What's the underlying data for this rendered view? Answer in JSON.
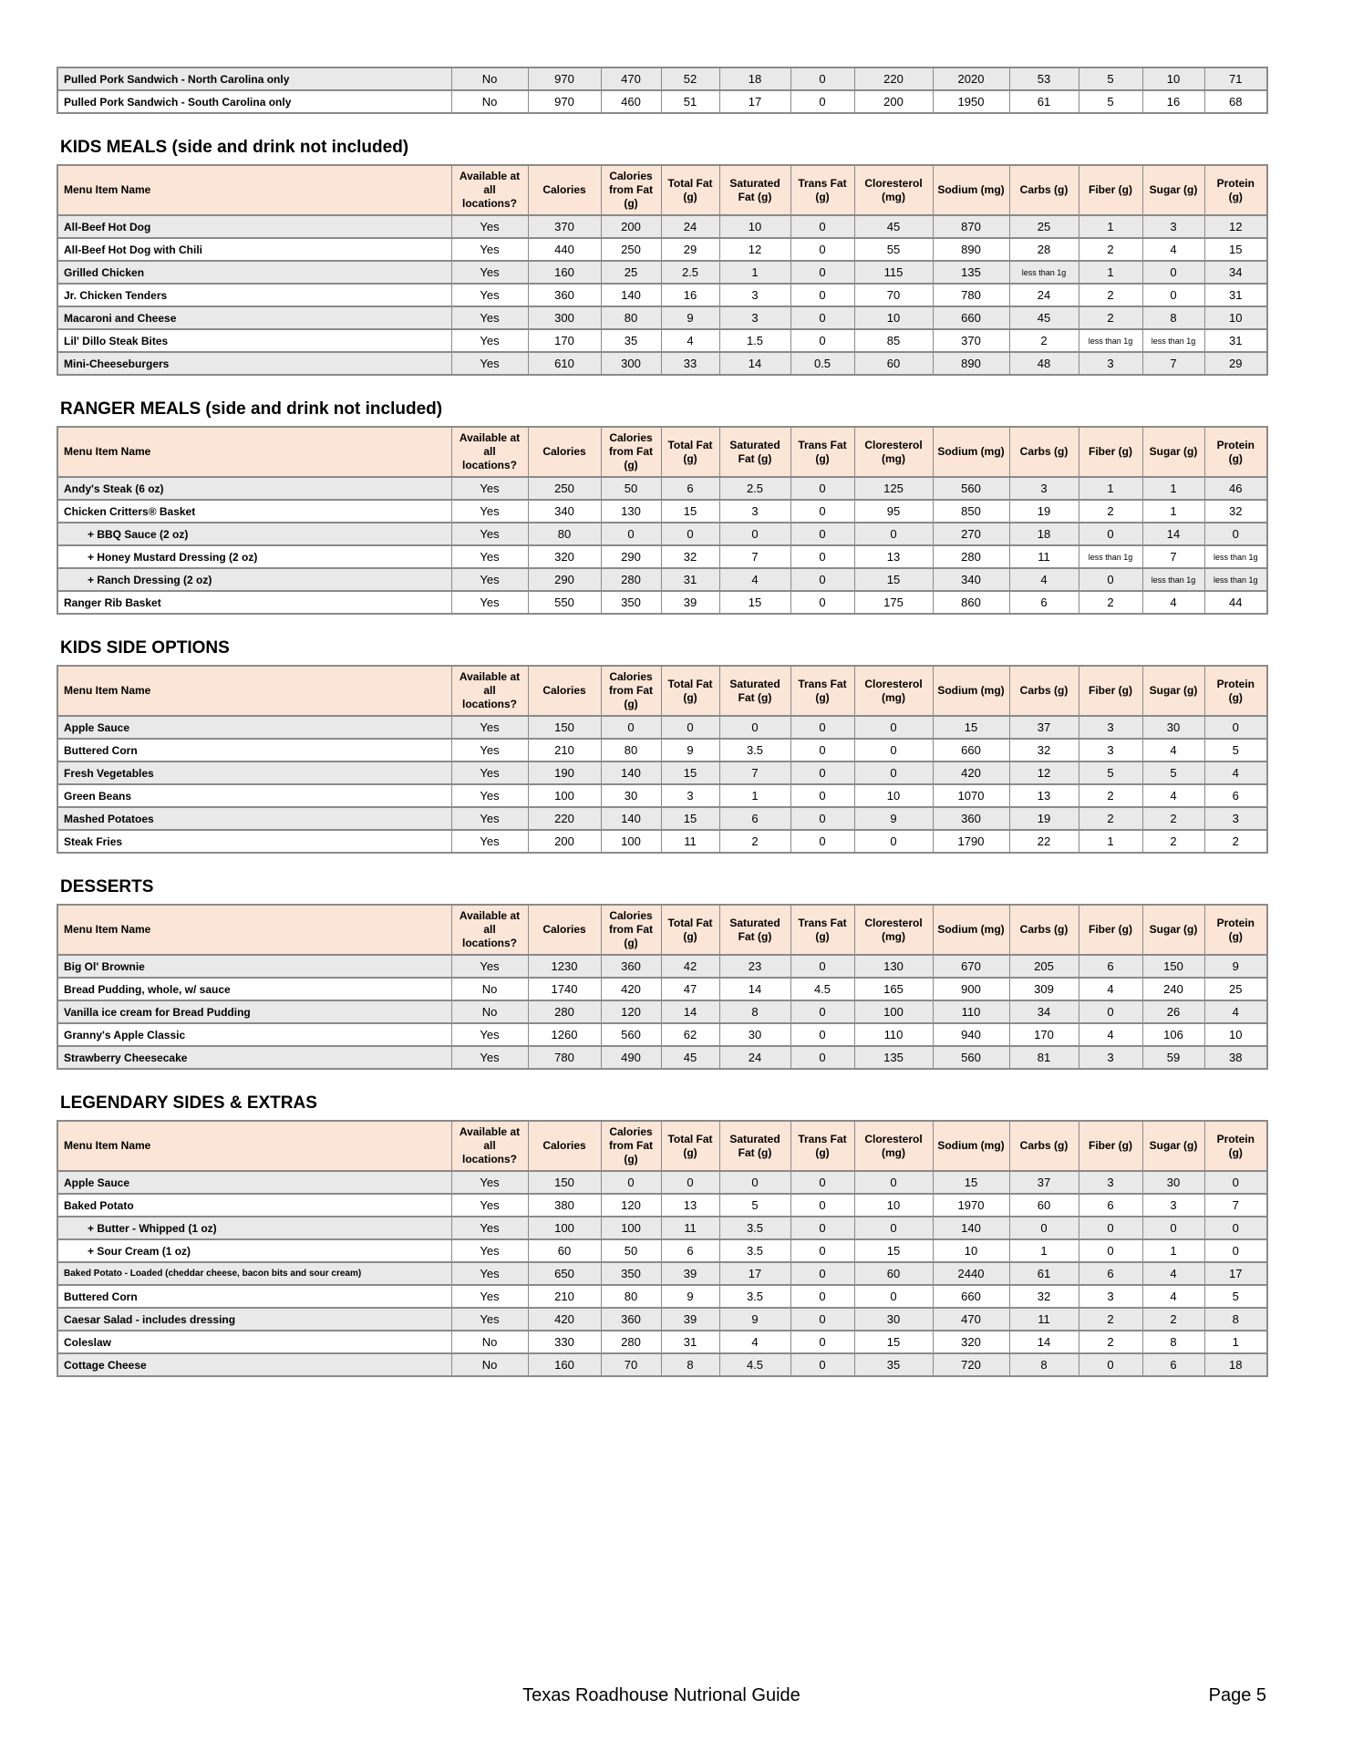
{
  "header_columns": {
    "menu": "Menu Item Name",
    "cols": [
      "Available at all locations?",
      "Calories",
      "Calories from Fat (g)",
      "Total Fat (g)",
      "Saturated Fat (g)",
      "Trans Fat (g)",
      "Cloresterol (mg)",
      "Sodium (mg)",
      "Carbs (g)",
      "Fiber (g)",
      "Sugar (g)",
      "Protein (g)"
    ]
  },
  "colors": {
    "header_bg": "#fbe5d6",
    "stripe_bg": "#e9e9e9",
    "border": "#8a8a8a"
  },
  "tables": [
    {
      "name": "sandwiches-continued",
      "title": "",
      "has_header": false,
      "rows": [
        {
          "item": "Pulled Pork Sandwich - North Carolina only",
          "values": [
            "No",
            "970",
            "470",
            "52",
            "18",
            "0",
            "220",
            "2020",
            "53",
            "5",
            "10",
            "71"
          ]
        },
        {
          "item": "Pulled Pork Sandwich - South Carolina only",
          "values": [
            "No",
            "970",
            "460",
            "51",
            "17",
            "0",
            "200",
            "1950",
            "61",
            "5",
            "16",
            "68"
          ]
        }
      ]
    },
    {
      "name": "kids-meals",
      "title": "KIDS MEALS (side and drink not included)",
      "has_header": true,
      "rows": [
        {
          "item": "All-Beef Hot Dog",
          "values": [
            "Yes",
            "370",
            "200",
            "24",
            "10",
            "0",
            "45",
            "870",
            "25",
            "1",
            "3",
            "12"
          ]
        },
        {
          "item": "All-Beef Hot Dog with Chili",
          "values": [
            "Yes",
            "440",
            "250",
            "29",
            "12",
            "0",
            "55",
            "890",
            "28",
            "2",
            "4",
            "15"
          ]
        },
        {
          "item": "Grilled Chicken",
          "values": [
            "Yes",
            "160",
            "25",
            "2.5",
            "1",
            "0",
            "115",
            "135",
            "less than 1g",
            "1",
            "0",
            "34"
          ]
        },
        {
          "item": "Jr. Chicken Tenders",
          "values": [
            "Yes",
            "360",
            "140",
            "16",
            "3",
            "0",
            "70",
            "780",
            "24",
            "2",
            "0",
            "31"
          ]
        },
        {
          "item": "Macaroni and Cheese",
          "values": [
            "Yes",
            "300",
            "80",
            "9",
            "3",
            "0",
            "10",
            "660",
            "45",
            "2",
            "8",
            "10"
          ]
        },
        {
          "item": "Lil' Dillo Steak Bites",
          "values": [
            "Yes",
            "170",
            "35",
            "4",
            "1.5",
            "0",
            "85",
            "370",
            "2",
            "less than 1g",
            "less than 1g",
            "31"
          ]
        },
        {
          "item": "Mini-Cheeseburgers",
          "values": [
            "Yes",
            "610",
            "300",
            "33",
            "14",
            "0.5",
            "60",
            "890",
            "48",
            "3",
            "7",
            "29"
          ]
        }
      ]
    },
    {
      "name": "ranger-meals",
      "title": "RANGER MEALS (side and drink not included)",
      "has_header": true,
      "rows": [
        {
          "item": "Andy's Steak (6 oz)",
          "values": [
            "Yes",
            "250",
            "50",
            "6",
            "2.5",
            "0",
            "125",
            "560",
            "3",
            "1",
            "1",
            "46"
          ]
        },
        {
          "item": "Chicken Critters® Basket",
          "values": [
            "Yes",
            "340",
            "130",
            "15",
            "3",
            "0",
            "95",
            "850",
            "19",
            "2",
            "1",
            "32"
          ]
        },
        {
          "item": "+ BBQ Sauce (2 oz)",
          "indent": true,
          "values": [
            "Yes",
            "80",
            "0",
            "0",
            "0",
            "0",
            "0",
            "270",
            "18",
            "0",
            "14",
            "0"
          ]
        },
        {
          "item": "+ Honey Mustard Dressing (2 oz)",
          "indent": true,
          "values": [
            "Yes",
            "320",
            "290",
            "32",
            "7",
            "0",
            "13",
            "280",
            "11",
            "less than 1g",
            "7",
            "less than 1g"
          ]
        },
        {
          "item": "+ Ranch Dressing (2 oz)",
          "indent": true,
          "values": [
            "Yes",
            "290",
            "280",
            "31",
            "4",
            "0",
            "15",
            "340",
            "4",
            "0",
            "less than 1g",
            "less than 1g"
          ]
        },
        {
          "item": "Ranger Rib Basket",
          "values": [
            "Yes",
            "550",
            "350",
            "39",
            "15",
            "0",
            "175",
            "860",
            "6",
            "2",
            "4",
            "44"
          ]
        }
      ]
    },
    {
      "name": "kids-side-options",
      "title": "KIDS SIDE OPTIONS",
      "has_header": true,
      "rows": [
        {
          "item": "Apple Sauce",
          "values": [
            "Yes",
            "150",
            "0",
            "0",
            "0",
            "0",
            "0",
            "15",
            "37",
            "3",
            "30",
            "0"
          ]
        },
        {
          "item": "Buttered Corn",
          "values": [
            "Yes",
            "210",
            "80",
            "9",
            "3.5",
            "0",
            "0",
            "660",
            "32",
            "3",
            "4",
            "5"
          ]
        },
        {
          "item": "Fresh Vegetables",
          "values": [
            "Yes",
            "190",
            "140",
            "15",
            "7",
            "0",
            "0",
            "420",
            "12",
            "5",
            "5",
            "4"
          ]
        },
        {
          "item": "Green Beans",
          "values": [
            "Yes",
            "100",
            "30",
            "3",
            "1",
            "0",
            "10",
            "1070",
            "13",
            "2",
            "4",
            "6"
          ]
        },
        {
          "item": "Mashed Potatoes",
          "values": [
            "Yes",
            "220",
            "140",
            "15",
            "6",
            "0",
            "9",
            "360",
            "19",
            "2",
            "2",
            "3"
          ]
        },
        {
          "item": "Steak Fries",
          "values": [
            "Yes",
            "200",
            "100",
            "11",
            "2",
            "0",
            "0",
            "1790",
            "22",
            "1",
            "2",
            "2"
          ]
        }
      ]
    },
    {
      "name": "desserts",
      "title": "DESSERTS",
      "has_header": true,
      "rows": [
        {
          "item": "Big Ol' Brownie",
          "values": [
            "Yes",
            "1230",
            "360",
            "42",
            "23",
            "0",
            "130",
            "670",
            "205",
            "6",
            "150",
            "9"
          ]
        },
        {
          "item": "Bread Pudding, whole, w/ sauce",
          "values": [
            "No",
            "1740",
            "420",
            "47",
            "14",
            "4.5",
            "165",
            "900",
            "309",
            "4",
            "240",
            "25"
          ]
        },
        {
          "item": "Vanilla ice cream for Bread Pudding",
          "values": [
            "No",
            "280",
            "120",
            "14",
            "8",
            "0",
            "100",
            "110",
            "34",
            "0",
            "26",
            "4"
          ]
        },
        {
          "item": "Granny's Apple Classic",
          "values": [
            "Yes",
            "1260",
            "560",
            "62",
            "30",
            "0",
            "110",
            "940",
            "170",
            "4",
            "106",
            "10"
          ]
        },
        {
          "item": "Strawberry Cheesecake",
          "values": [
            "Yes",
            "780",
            "490",
            "45",
            "24",
            "0",
            "135",
            "560",
            "81",
            "3",
            "59",
            "38"
          ]
        }
      ]
    },
    {
      "name": "legendary-sides-extras",
      "title": "LEGENDARY SIDES & EXTRAS",
      "has_header": true,
      "rows": [
        {
          "item": "Apple Sauce",
          "values": [
            "Yes",
            "150",
            "0",
            "0",
            "0",
            "0",
            "0",
            "15",
            "37",
            "3",
            "30",
            "0"
          ]
        },
        {
          "item": "Baked Potato",
          "values": [
            "Yes",
            "380",
            "120",
            "13",
            "5",
            "0",
            "10",
            "1970",
            "60",
            "6",
            "3",
            "7"
          ]
        },
        {
          "item": "+ Butter - Whipped (1 oz)",
          "indent": true,
          "values": [
            "Yes",
            "100",
            "100",
            "11",
            "3.5",
            "0",
            "0",
            "140",
            "0",
            "0",
            "0",
            "0"
          ]
        },
        {
          "item": "+ Sour Cream (1 oz)",
          "indent": true,
          "values": [
            "Yes",
            "60",
            "50",
            "6",
            "3.5",
            "0",
            "15",
            "10",
            "1",
            "0",
            "1",
            "0"
          ]
        },
        {
          "item": "Baked Potato - Loaded (cheddar cheese, bacon bits and sour cream)",
          "small": true,
          "values": [
            "Yes",
            "650",
            "350",
            "39",
            "17",
            "0",
            "60",
            "2440",
            "61",
            "6",
            "4",
            "17"
          ]
        },
        {
          "item": "Buttered Corn",
          "values": [
            "Yes",
            "210",
            "80",
            "9",
            "3.5",
            "0",
            "0",
            "660",
            "32",
            "3",
            "4",
            "5"
          ]
        },
        {
          "item": "Caesar Salad - includes dressing",
          "values": [
            "Yes",
            "420",
            "360",
            "39",
            "9",
            "0",
            "30",
            "470",
            "11",
            "2",
            "2",
            "8"
          ]
        },
        {
          "item": "Coleslaw",
          "values": [
            "No",
            "330",
            "280",
            "31",
            "4",
            "0",
            "15",
            "320",
            "14",
            "2",
            "8",
            "1"
          ]
        },
        {
          "item": "Cottage Cheese",
          "values": [
            "No",
            "160",
            "70",
            "8",
            "4.5",
            "0",
            "35",
            "720",
            "8",
            "0",
            "6",
            "18"
          ]
        }
      ]
    }
  ],
  "footer": {
    "title": "Texas Roadhouse Nutrional Guide",
    "page": "Page 5"
  }
}
